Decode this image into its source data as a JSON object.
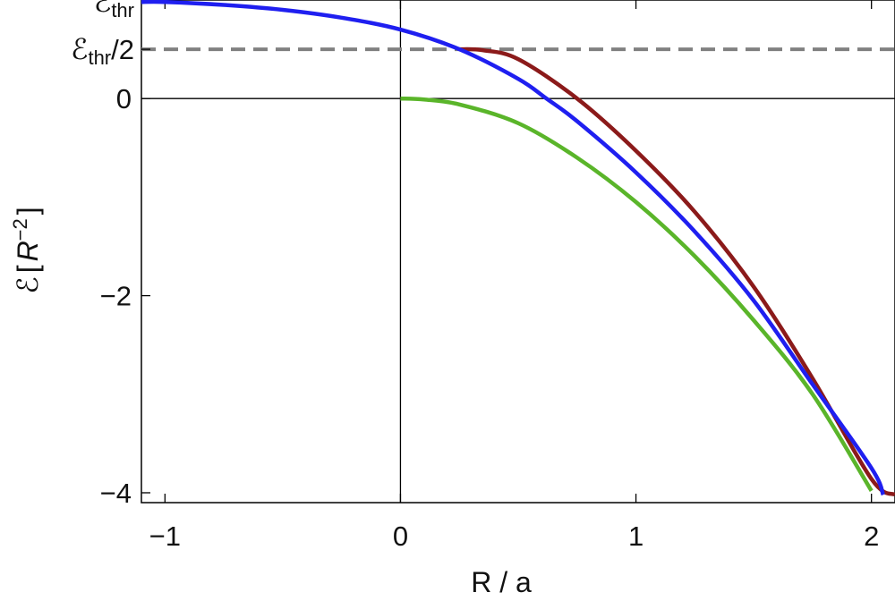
{
  "chart_data": {
    "type": "line",
    "xlabel": "R / a",
    "ylabel": {
      "symbol": "ℰ",
      "bracket_open": "[",
      "unit_base": "R",
      "unit_exponent": "−2",
      "bracket_close": "]"
    },
    "xlim": [
      -1.1,
      2.1
    ],
    "ylim": [
      -4.1,
      1.0
    ],
    "x_ticks": [
      {
        "value": -1,
        "label": "−1"
      },
      {
        "value": 0,
        "label": "0"
      },
      {
        "value": 1,
        "label": "1"
      },
      {
        "value": 2,
        "label": "2"
      }
    ],
    "y_ticks": [
      {
        "value": 0,
        "label": "0"
      },
      {
        "value": -2,
        "label": "−2"
      },
      {
        "value": -4,
        "label": "−4"
      }
    ],
    "special_y_ticks": [
      {
        "value": 0.98,
        "symbol": "ℰ",
        "subscript": "thr",
        "suffix": ""
      },
      {
        "value": 0.5,
        "symbol": "ℰ",
        "subscript": "thr",
        "suffix": "/2"
      }
    ],
    "reference_lines": [
      {
        "axis": "x",
        "value": 0,
        "color": "#000000"
      },
      {
        "axis": "y",
        "value": 0,
        "color": "#000000"
      },
      {
        "axis": "y",
        "value": 0.5,
        "color": "#808080",
        "dashed": true
      }
    ],
    "series": [
      {
        "color": "#8b1a1a",
        "x": [
          0.25,
          0.35,
          0.5,
          0.75,
          1.0,
          1.25,
          1.5,
          1.75,
          2.0,
          2.1
        ],
        "y": [
          0.5,
          0.49,
          0.4,
          0.0,
          -0.53,
          -1.15,
          -1.91,
          -2.84,
          -3.86,
          -4.02
        ]
      },
      {
        "color": "#1f1ff0",
        "x": [
          -1.1,
          -1.0,
          -0.75,
          -0.5,
          -0.25,
          0.0,
          0.25,
          0.5,
          0.62,
          0.75,
          1.0,
          1.25,
          1.5,
          1.75,
          2.0,
          2.05
        ],
        "y": [
          0.98,
          0.98,
          0.95,
          0.9,
          0.82,
          0.7,
          0.5,
          0.2,
          0.0,
          -0.23,
          -0.75,
          -1.35,
          -2.05,
          -2.9,
          -3.75,
          -4.02
        ]
      },
      {
        "color": "#5ab52a",
        "x": [
          0.0,
          0.1,
          0.25,
          0.5,
          0.75,
          1.0,
          1.25,
          1.5,
          1.75,
          2.0
        ],
        "y": [
          0.0,
          -0.01,
          -0.06,
          -0.25,
          -0.6,
          -1.05,
          -1.6,
          -2.25,
          -3.0,
          -3.98
        ]
      }
    ]
  }
}
